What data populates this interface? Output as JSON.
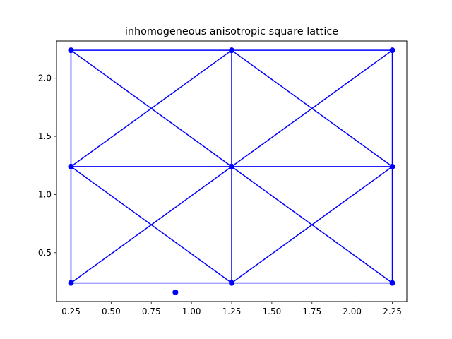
{
  "chart_data": {
    "type": "line",
    "title": "inhomogeneous anisotropic square lattice",
    "xlabel": "",
    "ylabel": "",
    "xlim": [
      0.16,
      2.34
    ],
    "ylim": [
      0.08,
      2.32
    ],
    "x_ticks": [
      0.25,
      0.5,
      0.75,
      1.0,
      1.25,
      1.5,
      1.75,
      2.0,
      2.25
    ],
    "x_tick_labels": [
      "0.25",
      "0.50",
      "0.75",
      "1.00",
      "1.25",
      "1.50",
      "1.75",
      "2.00",
      "2.25"
    ],
    "y_ticks": [
      0.5,
      1.0,
      1.5,
      2.0
    ],
    "y_tick_labels": [
      "0.5",
      "1.0",
      "1.5",
      "2.0"
    ],
    "grid": false,
    "color": "#0000ff",
    "points": [
      {
        "x": 0.25,
        "y": 0.24
      },
      {
        "x": 1.25,
        "y": 0.24
      },
      {
        "x": 2.25,
        "y": 0.24
      },
      {
        "x": 0.25,
        "y": 1.24
      },
      {
        "x": 1.25,
        "y": 1.24
      },
      {
        "x": 2.25,
        "y": 1.24
      },
      {
        "x": 0.25,
        "y": 2.24
      },
      {
        "x": 1.25,
        "y": 2.24
      },
      {
        "x": 2.25,
        "y": 2.24
      },
      {
        "x": 0.9,
        "y": 0.16
      }
    ],
    "edges": [
      [
        [
          0.25,
          0.24
        ],
        [
          1.25,
          0.24
        ]
      ],
      [
        [
          1.25,
          0.24
        ],
        [
          2.25,
          0.24
        ]
      ],
      [
        [
          0.25,
          1.24
        ],
        [
          1.25,
          1.24
        ]
      ],
      [
        [
          1.25,
          1.24
        ],
        [
          2.25,
          1.24
        ]
      ],
      [
        [
          0.25,
          2.24
        ],
        [
          1.25,
          2.24
        ]
      ],
      [
        [
          1.25,
          2.24
        ],
        [
          2.25,
          2.24
        ]
      ],
      [
        [
          0.25,
          0.24
        ],
        [
          0.25,
          1.24
        ]
      ],
      [
        [
          0.25,
          1.24
        ],
        [
          0.25,
          2.24
        ]
      ],
      [
        [
          1.25,
          0.24
        ],
        [
          1.25,
          1.24
        ]
      ],
      [
        [
          1.25,
          1.24
        ],
        [
          1.25,
          2.24
        ]
      ],
      [
        [
          2.25,
          0.24
        ],
        [
          2.25,
          1.24
        ]
      ],
      [
        [
          2.25,
          1.24
        ],
        [
          2.25,
          2.24
        ]
      ],
      [
        [
          0.25,
          0.24
        ],
        [
          1.25,
          1.24
        ]
      ],
      [
        [
          1.25,
          0.24
        ],
        [
          0.25,
          1.24
        ]
      ],
      [
        [
          1.25,
          0.24
        ],
        [
          2.25,
          1.24
        ]
      ],
      [
        [
          2.25,
          0.24
        ],
        [
          1.25,
          1.24
        ]
      ],
      [
        [
          0.25,
          1.24
        ],
        [
          1.25,
          2.24
        ]
      ],
      [
        [
          1.25,
          1.24
        ],
        [
          0.25,
          2.24
        ]
      ],
      [
        [
          1.25,
          1.24
        ],
        [
          2.25,
          2.24
        ]
      ],
      [
        [
          2.25,
          1.24
        ],
        [
          1.25,
          2.24
        ]
      ]
    ]
  }
}
